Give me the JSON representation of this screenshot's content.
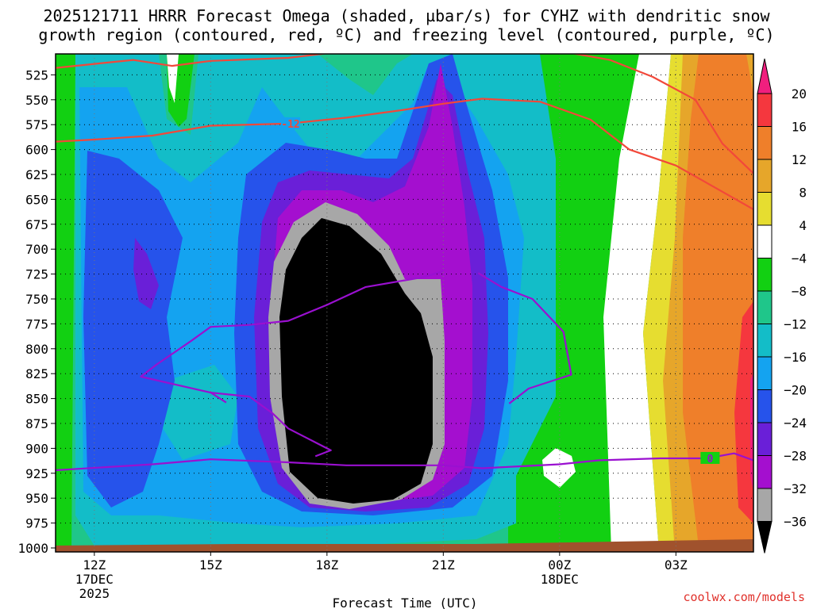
{
  "title_line1": "2025121711 HRRR Forecast Omega (shaded, µbar/s) for CYHZ with dendritic snow",
  "title_line2": "growth region (contoured, red, ºC) and freezing level (contoured, purple, ºC)",
  "credit": "coolwx.com/models",
  "chart_data": {
    "type": "heatmap",
    "xlabel": "Forecast Time (UTC)",
    "x_ticks": [
      {
        "hour": 12,
        "label": "12Z",
        "sub1": "17DEC",
        "sub2": "2025"
      },
      {
        "hour": 15,
        "label": "15Z",
        "sub1": "",
        "sub2": ""
      },
      {
        "hour": 18,
        "label": "18Z",
        "sub1": "",
        "sub2": ""
      },
      {
        "hour": 21,
        "label": "21Z",
        "sub1": "",
        "sub2": ""
      },
      {
        "hour": 24,
        "label": "00Z",
        "sub1": "18DEC",
        "sub2": ""
      },
      {
        "hour": 27,
        "label": "03Z",
        "sub1": "",
        "sub2": ""
      }
    ],
    "x_range_hours": [
      11,
      29
    ],
    "y_axis": "pressure (hPa), reversed",
    "y_range": [
      500,
      1000
    ],
    "y_ticks": [
      525,
      550,
      575,
      600,
      625,
      650,
      675,
      700,
      725,
      750,
      775,
      800,
      825,
      850,
      875,
      900,
      925,
      950,
      975,
      1000
    ],
    "colorbar": {
      "labels": [
        "20",
        "16",
        "12",
        "8",
        "4",
        "−4",
        "−8",
        "−12",
        "−16",
        "−20",
        "−24",
        "−28",
        "−32",
        "−36"
      ],
      "bins": [
        {
          "range": ">20",
          "color": "#f01f7e"
        },
        {
          "range": "16 to 20",
          "color": "#f5373e"
        },
        {
          "range": "12 to 16",
          "color": "#ef7f2a"
        },
        {
          "range": "8 to 12",
          "color": "#e6a62a"
        },
        {
          "range": "4 to 8",
          "color": "#e6dd30"
        },
        {
          "range": "-4 to 4",
          "color": "#ffffff"
        },
        {
          "range": "-8 to -4",
          "color": "#12d012"
        },
        {
          "range": "-12 to -8",
          "color": "#1fc68a"
        },
        {
          "range": "-16 to -12",
          "color": "#13bdc8"
        },
        {
          "range": "-20 to -16",
          "color": "#14a3f0"
        },
        {
          "range": "-24 to -20",
          "color": "#2653eb"
        },
        {
          "range": "-28 to -24",
          "color": "#6a1fd8"
        },
        {
          "range": "-32 to -28",
          "color": "#a40fcf"
        },
        {
          "range": "-36 to -32",
          "color": "#a7a7a7"
        },
        {
          "range": "<-36",
          "color": "#000000"
        }
      ]
    },
    "contours": [
      {
        "color": "red",
        "label": "-12",
        "points": [
          [
            11,
            592
          ],
          [
            12,
            590
          ],
          [
            13.5,
            586
          ],
          [
            15,
            576
          ],
          [
            17,
            574
          ],
          [
            18.5,
            568
          ],
          [
            20,
            560
          ],
          [
            21,
            554
          ],
          [
            22,
            549
          ],
          [
            23.5,
            552
          ],
          [
            24.8,
            570
          ],
          [
            25.8,
            600
          ],
          [
            27,
            616
          ],
          [
            28,
            638
          ],
          [
            29,
            660
          ]
        ]
      },
      {
        "color": "red",
        "label": "",
        "points": [
          [
            11,
            518
          ],
          [
            12,
            514
          ],
          [
            13,
            510
          ],
          [
            14,
            516
          ],
          [
            15,
            511
          ],
          [
            17,
            508
          ],
          [
            18.5,
            501
          ],
          [
            20,
            500
          ],
          [
            23,
            500
          ],
          [
            24,
            501
          ],
          [
            25.3,
            510
          ],
          [
            26.4,
            527
          ],
          [
            27.5,
            550
          ],
          [
            28.2,
            594
          ],
          [
            29,
            624
          ]
        ]
      },
      {
        "color": "purple",
        "label": "0",
        "points": [
          [
            11,
            922
          ],
          [
            13.5,
            916
          ],
          [
            15,
            911
          ],
          [
            17,
            914
          ],
          [
            18.5,
            917
          ],
          [
            21,
            917
          ],
          [
            22,
            920
          ],
          [
            23,
            918
          ],
          [
            24,
            916
          ],
          [
            25,
            912
          ],
          [
            26.6,
            910
          ],
          [
            27.8,
            910
          ],
          [
            28.5,
            905
          ],
          [
            29,
            912
          ]
        ]
      },
      {
        "color": "purple",
        "label": "",
        "points": [
          [
            15.4,
            854
          ],
          [
            15,
            844
          ],
          [
            13.2,
            828
          ],
          [
            13.6,
            816
          ],
          [
            14.5,
            792
          ],
          [
            15,
            778
          ],
          [
            16,
            776
          ],
          [
            17,
            772
          ],
          [
            18,
            756
          ],
          [
            19,
            738
          ],
          [
            20.5,
            728
          ],
          [
            21,
            722
          ]
        ]
      },
      {
        "color": "purple",
        "label": "",
        "points": [
          [
            22.7,
            855
          ],
          [
            23.2,
            840
          ],
          [
            24.3,
            826
          ],
          [
            24.1,
            783
          ],
          [
            23.3,
            750
          ],
          [
            22.5,
            738
          ],
          [
            21.9,
            724
          ]
        ]
      },
      {
        "color": "purple",
        "label": "",
        "points": [
          [
            15,
            844
          ],
          [
            16,
            848
          ],
          [
            16.6,
            865
          ],
          [
            17,
            880
          ],
          [
            17.8,
            896
          ],
          [
            18.1,
            902
          ],
          [
            17.7,
            908
          ]
        ]
      }
    ]
  }
}
